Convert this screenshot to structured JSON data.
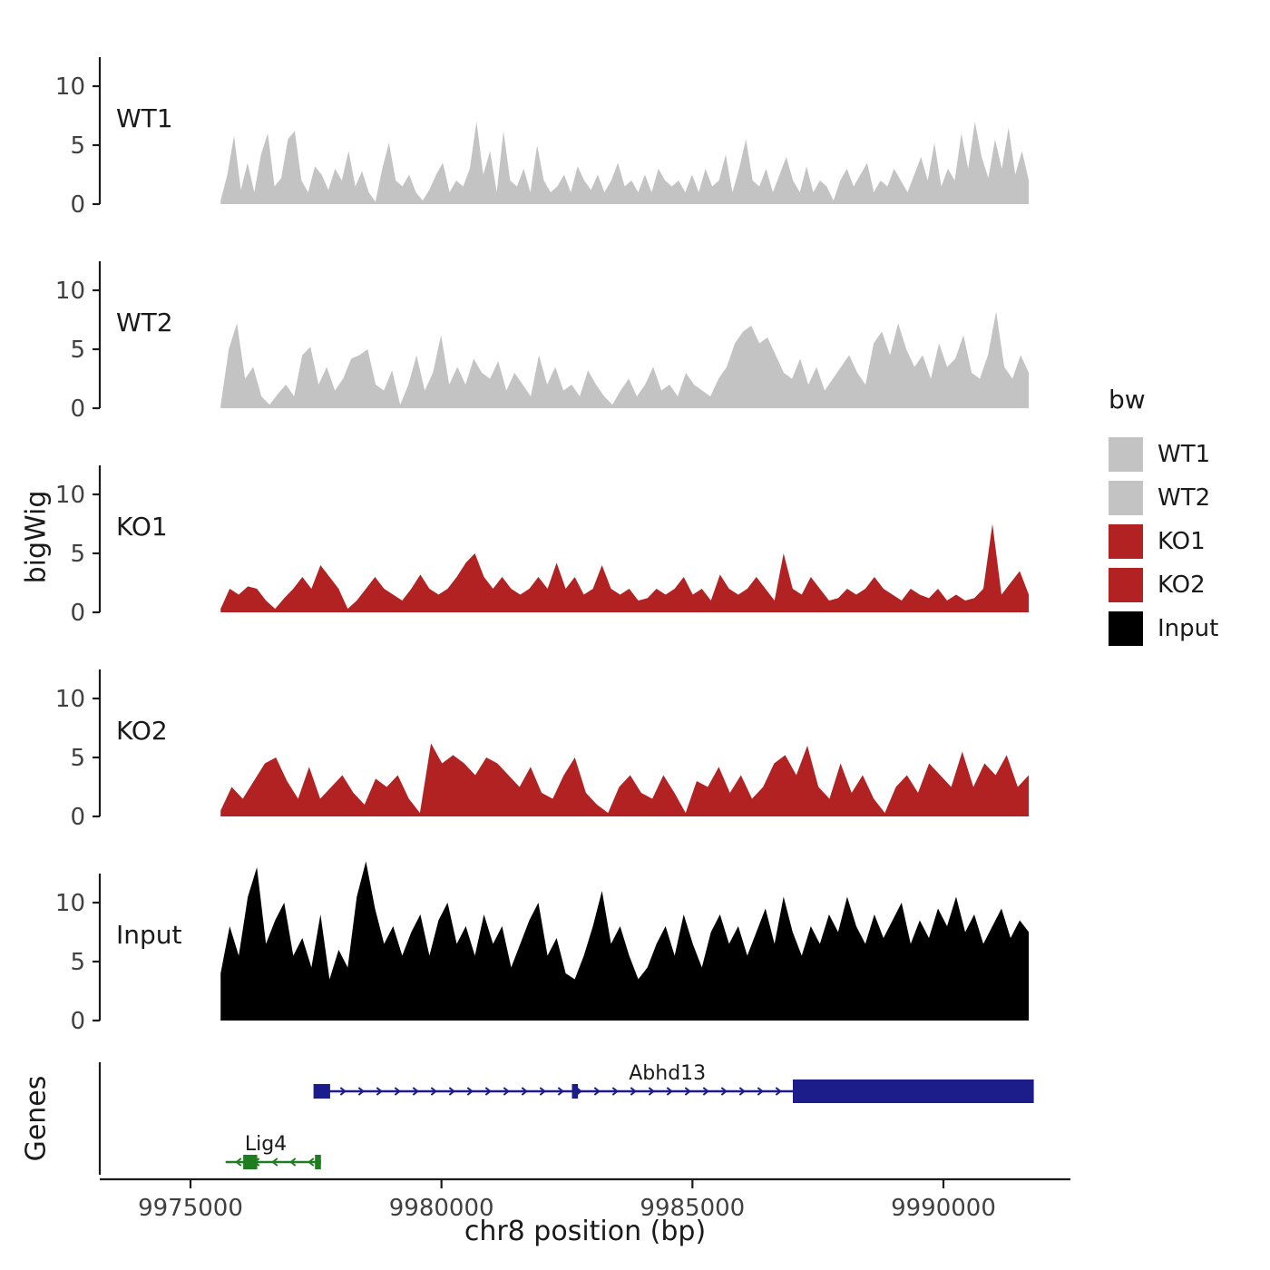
{
  "chart_data": {
    "type": "area",
    "title": "",
    "xlabel": "chr8 position (bp)",
    "ylabel": "bigWig",
    "genes_label": "Genes",
    "legend_title": "bw",
    "x_ticks": [
      9975000,
      9980000,
      9985000,
      9990000
    ],
    "x_tick_labels": [
      "9975000",
      "9980000",
      "9985000",
      "9990000"
    ],
    "y_ticks": [
      0,
      5,
      10
    ],
    "y_tick_labels": [
      "0",
      "5",
      "10"
    ],
    "ylim": [
      0,
      13.5
    ],
    "data_bp_start": 9975600,
    "data_bp_end": 9991700,
    "series": [
      {
        "name": "WT1",
        "color": "#c3c3c3",
        "values": [
          0.3,
          2.5,
          5.8,
          1.2,
          3.5,
          1,
          4.2,
          6,
          1.5,
          2.2,
          5.5,
          6.2,
          2,
          1,
          3.2,
          2.5,
          1.2,
          3,
          2,
          4.5,
          1.5,
          2.8,
          1,
          0.2,
          3,
          5.2,
          2,
          1.5,
          2.5,
          1,
          0.3,
          1.2,
          2.5,
          3.5,
          1,
          2,
          1.5,
          3,
          7,
          2.5,
          4.5,
          1,
          6.2,
          2,
          1.5,
          3,
          1,
          5,
          2,
          1,
          1.5,
          2.5,
          1,
          3.2,
          2,
          1.2,
          2.5,
          1,
          2,
          3.5,
          1.5,
          2,
          1,
          2.5,
          1,
          3,
          2,
          1.5,
          2,
          1,
          2.5,
          1,
          3,
          1.5,
          2,
          4.2,
          1,
          3,
          5.5,
          2,
          1.5,
          3,
          1,
          2.5,
          4,
          2,
          1,
          3.2,
          1,
          2,
          1.5,
          0.3,
          2,
          3,
          1.5,
          2.5,
          3.5,
          1,
          2,
          1.5,
          3,
          2,
          1,
          2.5,
          4,
          2,
          5.2,
          1.5,
          3,
          2,
          6,
          3,
          7,
          4,
          2.2,
          5.5,
          3,
          6.5,
          2.5,
          4.5,
          2
        ]
      },
      {
        "name": "WT2",
        "color": "#c3c3c3",
        "values": [
          0.2,
          5,
          7.2,
          2.5,
          3.5,
          1,
          0.3,
          1.2,
          2,
          1,
          4.5,
          5.2,
          2,
          3.5,
          1.5,
          2.5,
          4.2,
          4.5,
          5,
          2,
          1.5,
          3.2,
          0.3,
          2,
          4.5,
          1.5,
          3,
          6.2,
          2,
          3.5,
          2,
          4.2,
          3,
          2.5,
          4,
          1.5,
          3,
          2,
          1,
          4.5,
          2,
          3.5,
          1.5,
          2,
          1,
          3.2,
          2,
          1,
          0.3,
          1.5,
          2.5,
          1,
          2,
          3.5,
          1.5,
          2,
          1,
          3,
          2,
          1.5,
          1,
          2.5,
          3.5,
          5.5,
          6.5,
          7,
          5.5,
          6,
          4.5,
          3,
          2.5,
          4.2,
          2,
          3.5,
          1.5,
          2.5,
          3.5,
          4.5,
          3,
          2,
          5.5,
          6.5,
          4.5,
          7.2,
          5,
          3.5,
          4.5,
          2.5,
          5.5,
          3.5,
          4.2,
          6.2,
          3,
          2.5,
          4.5,
          8.2,
          3.5,
          2.5,
          4.5,
          3
        ]
      },
      {
        "name": "KO1",
        "color": "#b22222",
        "values": [
          0.3,
          2,
          1.5,
          2.2,
          2,
          1,
          0.3,
          1.2,
          2,
          3,
          2,
          4,
          3,
          2,
          0.3,
          1,
          2,
          3,
          2,
          1.5,
          1,
          2,
          3.2,
          2,
          1.5,
          2,
          3,
          4.2,
          5,
          3,
          2,
          3,
          2,
          1.5,
          2,
          3,
          2,
          4.2,
          2,
          3,
          1.5,
          2,
          4,
          2,
          1.5,
          2,
          1,
          1.2,
          2,
          1.5,
          2,
          3,
          1.5,
          2,
          1,
          3.2,
          2,
          1.5,
          2,
          3,
          2,
          1,
          5,
          2,
          1.5,
          3,
          2,
          1,
          1.2,
          2,
          1.5,
          2,
          3,
          2,
          1.5,
          1,
          2,
          1.5,
          1.2,
          2,
          1,
          1.5,
          1,
          1.2,
          2,
          7.5,
          1.5,
          2.5,
          3.5,
          1.5
        ]
      },
      {
        "name": "KO2",
        "color": "#b22222",
        "values": [
          0.5,
          2.5,
          1.5,
          3,
          4.5,
          5,
          3,
          1.5,
          4.2,
          1.5,
          2.5,
          3.5,
          2,
          1,
          3.2,
          2.5,
          3.5,
          1.5,
          0.3,
          6.2,
          4.5,
          5.2,
          4.5,
          3.5,
          5,
          4.5,
          3.5,
          2.5,
          4.2,
          2,
          1.5,
          3.5,
          5,
          2,
          1,
          0.3,
          2.5,
          3.5,
          2,
          1.5,
          3.5,
          2,
          0.3,
          3,
          2.5,
          4.2,
          2,
          3.5,
          1.5,
          2.5,
          4.5,
          5.2,
          3.5,
          6,
          2.5,
          1.5,
          4.5,
          2,
          3.5,
          1.5,
          0.3,
          2.5,
          3.5,
          2,
          4.5,
          3.5,
          2.5,
          5.5,
          2.5,
          4.5,
          3.5,
          5.2,
          2.5,
          3.5
        ]
      },
      {
        "name": "Input",
        "color": "#000000",
        "values": [
          4,
          8,
          5.5,
          10.5,
          13,
          6.5,
          8.5,
          10,
          5.5,
          7,
          4.5,
          9,
          3.5,
          6,
          4.5,
          10.5,
          13.5,
          9.5,
          6.5,
          8,
          5.5,
          7.5,
          9,
          5.5,
          8.5,
          10,
          6.5,
          8,
          5.5,
          9,
          6.5,
          8,
          4.5,
          6.5,
          8.5,
          10,
          5.5,
          7,
          4,
          3.5,
          5.5,
          8,
          11,
          6.5,
          8,
          5.5,
          3.5,
          4.5,
          6.5,
          8,
          5.5,
          9,
          6.5,
          4.5,
          7.5,
          9,
          6.5,
          8,
          5.5,
          7.5,
          9.5,
          6.5,
          10.5,
          7.5,
          5.5,
          8,
          6.5,
          9,
          7.5,
          10.5,
          8,
          6.5,
          9,
          7,
          8.5,
          10,
          6.5,
          8.5,
          7,
          9.5,
          8,
          10.5,
          7.5,
          9,
          6.5,
          8,
          9.5,
          7,
          8.5,
          7.5
        ]
      }
    ],
    "genes": [
      {
        "name": "Abhd13",
        "color": "#1c1c8a",
        "strand": "+",
        "line_start_bp": 9977500,
        "line_end_bp": 9987100,
        "exons": [
          {
            "start_bp": 9977450,
            "end_bp": 9977780,
            "thick": false
          },
          {
            "start_bp": 9982600,
            "end_bp": 9982720,
            "thick": false
          },
          {
            "start_bp": 9987000,
            "end_bp": 9991800,
            "thick": true
          }
        ],
        "label_bp": 9984500
      },
      {
        "name": "Lig4",
        "color": "#1e7d1e",
        "strand": "-",
        "line_start_bp": 9975700,
        "line_end_bp": 9977600,
        "exons": [
          {
            "start_bp": 9976050,
            "end_bp": 9976330,
            "thick": false
          },
          {
            "start_bp": 9977480,
            "end_bp": 9977600,
            "thick": false
          }
        ],
        "label_bp": 9976500
      }
    ]
  }
}
